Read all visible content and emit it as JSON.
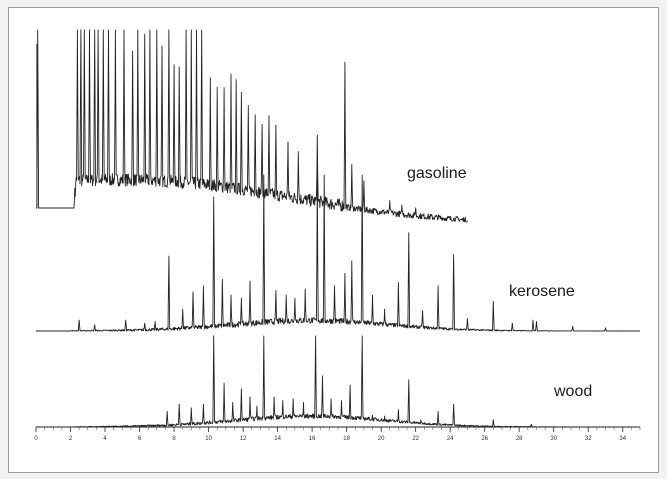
{
  "chart_data": {
    "type": "line",
    "title": "",
    "xlabel": "",
    "ylabel": "",
    "xlim": [
      0,
      35
    ],
    "x_ticks": [
      "0",
      "2",
      "4",
      "6",
      "8",
      "10",
      "12",
      "14",
      "16",
      "18",
      "20",
      "22",
      "24",
      "26",
      "28",
      "30",
      "32",
      "34"
    ],
    "grid": false,
    "legend": "none",
    "series": [
      {
        "name": "gasoline",
        "x_range": [
          0,
          25
        ],
        "baseline": 0,
        "peaks": [
          [
            0.1,
            100
          ],
          [
            2.4,
            100
          ],
          [
            2.6,
            100
          ],
          [
            2.8,
            100
          ],
          [
            3.1,
            100
          ],
          [
            3.4,
            100
          ],
          [
            3.6,
            100
          ],
          [
            3.9,
            100
          ],
          [
            4.2,
            100
          ],
          [
            4.6,
            100
          ],
          [
            5.1,
            100
          ],
          [
            5.6,
            83
          ],
          [
            5.9,
            100
          ],
          [
            6.3,
            93
          ],
          [
            6.6,
            100
          ],
          [
            7.0,
            100
          ],
          [
            7.3,
            87
          ],
          [
            7.7,
            100
          ],
          [
            8.0,
            77
          ],
          [
            8.3,
            76
          ],
          [
            8.7,
            100
          ],
          [
            9.0,
            100
          ],
          [
            9.3,
            100
          ],
          [
            9.6,
            100
          ],
          [
            10.1,
            71
          ],
          [
            10.5,
            66
          ],
          [
            10.9,
            66
          ],
          [
            11.3,
            74
          ],
          [
            11.6,
            71
          ],
          [
            11.9,
            64
          ],
          [
            12.3,
            57
          ],
          [
            12.7,
            52
          ],
          [
            13.1,
            47
          ],
          [
            13.5,
            52
          ],
          [
            13.9,
            47
          ],
          [
            14.6,
            38
          ],
          [
            15.2,
            33
          ],
          [
            16.3,
            43
          ],
          [
            17.9,
            85
          ],
          [
            18.3,
            28
          ],
          [
            19.0,
            19
          ],
          [
            20.5,
            9
          ],
          [
            21.2,
            7
          ],
          [
            22.0,
            6
          ]
        ],
        "noise": 7,
        "bump": 10
      },
      {
        "name": "kerosene",
        "x_range": [
          0,
          35
        ],
        "baseline": 0,
        "peaks": [
          [
            2.5,
            7
          ],
          [
            3.4,
            4
          ],
          [
            5.2,
            7
          ],
          [
            6.3,
            5
          ],
          [
            6.9,
            6
          ],
          [
            7.7,
            48
          ],
          [
            8.5,
            14
          ],
          [
            9.1,
            25
          ],
          [
            9.7,
            29
          ],
          [
            10.3,
            86
          ],
          [
            10.8,
            33
          ],
          [
            11.3,
            23
          ],
          [
            11.9,
            21
          ],
          [
            12.4,
            32
          ],
          [
            13.2,
            100
          ],
          [
            13.9,
            26
          ],
          [
            14.5,
            23
          ],
          [
            15.0,
            21
          ],
          [
            15.6,
            27
          ],
          [
            16.3,
            100
          ],
          [
            16.7,
            100
          ],
          [
            17.3,
            29
          ],
          [
            17.9,
            37
          ],
          [
            18.3,
            45
          ],
          [
            18.9,
            100
          ],
          [
            19.5,
            23
          ],
          [
            20.2,
            14
          ],
          [
            21.0,
            31
          ],
          [
            21.6,
            63
          ],
          [
            22.4,
            13
          ],
          [
            23.3,
            29
          ],
          [
            24.2,
            49
          ],
          [
            25.0,
            8
          ],
          [
            26.5,
            19
          ],
          [
            27.6,
            5
          ],
          [
            28.8,
            7
          ],
          [
            29.0,
            6
          ],
          [
            31.1,
            3
          ],
          [
            33.0,
            2
          ]
        ],
        "noise": 4,
        "bump": 6
      },
      {
        "name": "wood",
        "x_range": [
          0,
          35
        ],
        "baseline": 0,
        "peaks": [
          [
            7.6,
            17
          ],
          [
            8.3,
            25
          ],
          [
            9.0,
            21
          ],
          [
            9.7,
            25
          ],
          [
            10.3,
            100
          ],
          [
            10.9,
            48
          ],
          [
            11.4,
            27
          ],
          [
            11.9,
            42
          ],
          [
            12.4,
            33
          ],
          [
            12.8,
            23
          ],
          [
            13.2,
            100
          ],
          [
            13.8,
            33
          ],
          [
            14.3,
            29
          ],
          [
            14.9,
            31
          ],
          [
            15.5,
            27
          ],
          [
            16.2,
            100
          ],
          [
            16.6,
            56
          ],
          [
            17.1,
            31
          ],
          [
            17.7,
            29
          ],
          [
            18.2,
            46
          ],
          [
            18.9,
            100
          ],
          [
            19.5,
            13
          ],
          [
            20.2,
            12
          ],
          [
            21.0,
            19
          ],
          [
            21.6,
            52
          ],
          [
            22.3,
            8
          ],
          [
            23.3,
            17
          ],
          [
            24.2,
            25
          ],
          [
            26.5,
            8
          ],
          [
            28.7,
            3
          ]
        ],
        "noise": 5,
        "bump": 11
      }
    ]
  }
}
